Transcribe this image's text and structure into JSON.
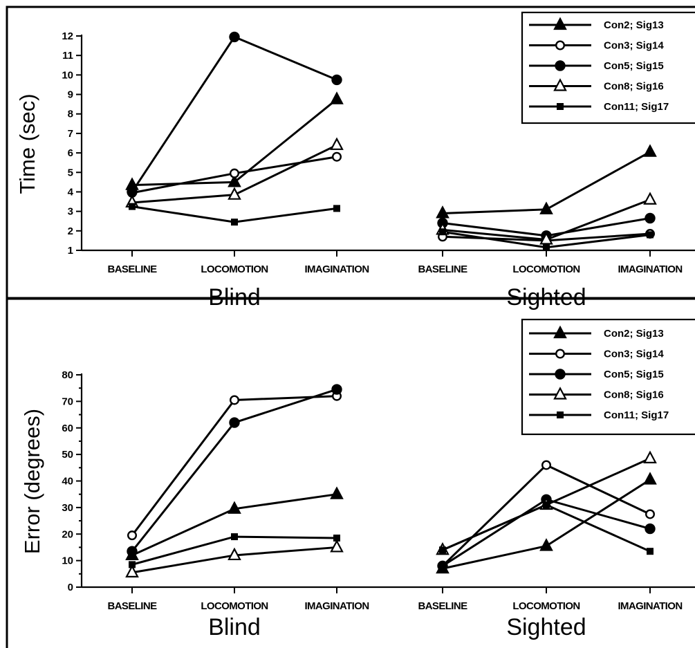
{
  "chart_data": [
    {
      "type": "line",
      "ylabel": "Time (sec)",
      "ylim": [
        1,
        12
      ],
      "yticks": [
        1,
        2,
        3,
        4,
        5,
        6,
        7,
        8,
        9,
        10,
        11,
        12
      ],
      "categories": [
        "BASELINE",
        "LOCOMOTION",
        "IMAGINATION",
        "BASELINE",
        "LOCOMOTION",
        "IMAGINATION"
      ],
      "groups": [
        {
          "label": "Blind",
          "categories": [
            0,
            1,
            2
          ]
        },
        {
          "label": "Sighted",
          "categories": [
            3,
            4,
            5
          ]
        }
      ],
      "legend_position": "top-right",
      "series": [
        {
          "name": "Con2;   Sig13",
          "marker": "triangle-filled",
          "values": [
            4.35,
            4.5,
            8.75,
            2.9,
            3.1,
            6.05
          ]
        },
        {
          "name": "Con3;   Sig14",
          "marker": "circle-open",
          "values": [
            3.95,
            4.95,
            5.8,
            1.7,
            1.5,
            1.85
          ]
        },
        {
          "name": "Con5;   Sig15",
          "marker": "circle-filled",
          "values": [
            4.0,
            11.95,
            9.75,
            2.4,
            1.75,
            2.65
          ]
        },
        {
          "name": "Con8;   Sig16",
          "marker": "triangle-open",
          "values": [
            3.45,
            3.85,
            6.4,
            2.05,
            1.55,
            3.6
          ]
        },
        {
          "name": "Con11; Sig17",
          "marker": "square-filled",
          "values": [
            3.25,
            2.45,
            3.15,
            1.95,
            1.15,
            1.8
          ]
        }
      ]
    },
    {
      "type": "line",
      "ylabel": "Error (degrees)",
      "ylim": [
        0,
        80
      ],
      "yticks": [
        0,
        10,
        20,
        30,
        40,
        50,
        60,
        70,
        80
      ],
      "categories": [
        "BASELINE",
        "LOCOMOTION",
        "IMAGINATION",
        "BASELINE",
        "LOCOMOTION",
        "IMAGINATION"
      ],
      "groups": [
        {
          "label": "Blind",
          "categories": [
            0,
            1,
            2
          ]
        },
        {
          "label": "Sighted",
          "categories": [
            3,
            4,
            5
          ]
        }
      ],
      "legend_position": "top-right",
      "series": [
        {
          "name": "Con2;   Sig13",
          "marker": "triangle-filled",
          "values": [
            12,
            29.5,
            35,
            7,
            15.5,
            40.5
          ]
        },
        {
          "name": "Con3;   Sig14",
          "marker": "circle-open",
          "values": [
            19.5,
            70.5,
            72,
            8,
            46,
            27.5
          ]
        },
        {
          "name": "Con5;   Sig15",
          "marker": "circle-filled",
          "values": [
            13.5,
            62,
            74.5,
            8,
            33,
            22
          ]
        },
        {
          "name": "Con8;   Sig16",
          "marker": "triangle-open",
          "values": [
            5.5,
            12,
            15,
            14,
            31,
            48.5
          ]
        },
        {
          "name": "Con11; Sig17",
          "marker": "square-filled",
          "values": [
            8.5,
            19,
            18.5,
            14,
            31,
            13.5
          ]
        }
      ]
    }
  ]
}
